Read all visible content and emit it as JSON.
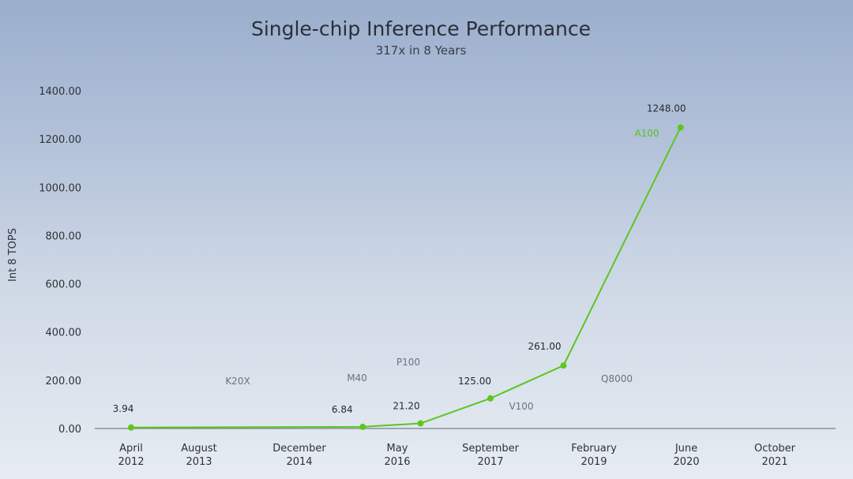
{
  "chart_data": {
    "type": "line",
    "title": "Single-chip Inference Performance",
    "subtitle": "317x in 8 Years",
    "ylabel": "Int 8 TOPS",
    "xlabel": "",
    "ylim": [
      0,
      1400
    ],
    "yticks": [
      "0.00",
      "200.00",
      "400.00",
      "600.00",
      "800.00",
      "1000.00",
      "1200.00",
      "1400.00"
    ],
    "xticks": [
      {
        "month": "April",
        "year": "2012"
      },
      {
        "month": "August",
        "year": "2013"
      },
      {
        "month": "December",
        "year": "2014"
      },
      {
        "month": "May",
        "year": "2016"
      },
      {
        "month": "September",
        "year": "2017"
      },
      {
        "month": "February",
        "year": "2019"
      },
      {
        "month": "June",
        "year": "2020"
      },
      {
        "month": "October",
        "year": "2021"
      }
    ],
    "series": [
      {
        "points": [
          {
            "x": "2012-04",
            "y": 3.94,
            "label": "3.94"
          },
          {
            "x": "2015-11",
            "y": 6.84,
            "label": "6.84"
          },
          {
            "x": "2016-09",
            "y": 21.2,
            "label": "21.20"
          },
          {
            "x": "2017-09",
            "y": 125,
            "label": "125.00"
          },
          {
            "x": "2018-09",
            "y": 261,
            "label": "261.00"
          },
          {
            "x": "2020-05",
            "y": 1248,
            "label": "1248.00"
          }
        ]
      }
    ],
    "gpu_labels": [
      "K20X",
      "M40",
      "P100",
      "V100",
      "Q8000",
      "A100"
    ],
    "line_color": "#5cc61f",
    "grid": false
  }
}
